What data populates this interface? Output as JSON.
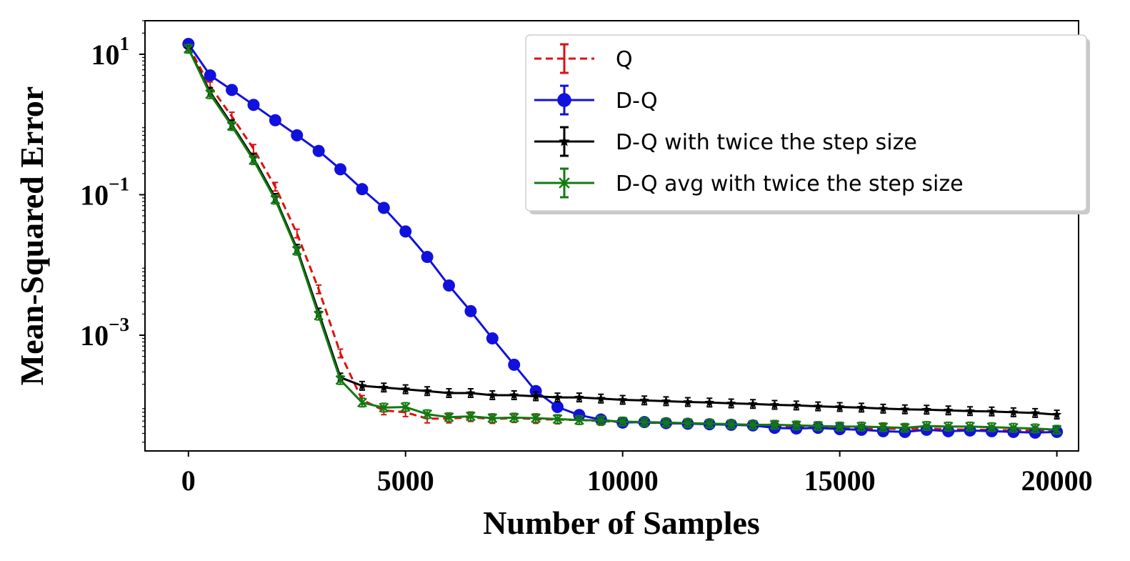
{
  "chart_data": {
    "type": "line",
    "title": "",
    "xlabel": "Number of Samples",
    "ylabel": "Mean-Squared Error",
    "yscale": "log",
    "xlim": [
      -1000,
      20500
    ],
    "ylim": [
      2.25e-05,
      30
    ],
    "xticks": [
      0,
      5000,
      10000,
      15000,
      20000
    ],
    "xtick_labels": [
      "0",
      "5000",
      "10000",
      "15000",
      "20000"
    ],
    "yticks": [
      10,
      0.1,
      0.001
    ],
    "ytick_labels": [
      {
        "base": "10",
        "exp": "1"
      },
      {
        "base": "10",
        "exp": "−1"
      },
      {
        "base": "10",
        "exp": "−3"
      }
    ],
    "grid": false,
    "legend_position": "top-right",
    "series": [
      {
        "name": "Q",
        "color": "#dd1111",
        "style": "dashed",
        "marker": "none",
        "x": [
          0,
          500,
          1000,
          1500,
          2000,
          2500,
          3000,
          3500,
          4000,
          4500,
          5000,
          5500,
          6000,
          6500,
          7000,
          7500,
          8000,
          8500,
          9000,
          9500,
          10000,
          10500,
          11000,
          11500,
          12000,
          12500,
          13000,
          13500,
          14000,
          14500,
          15000,
          15500,
          16000,
          16500,
          17000,
          17500,
          18000,
          18500,
          19000,
          19500,
          20000
        ],
        "y": [
          13,
          3.5,
          1.3,
          0.45,
          0.13,
          0.028,
          0.0045,
          0.00055,
          0.00012,
          8.5e-05,
          8e-05,
          6.5e-05,
          6.5e-05,
          6.8e-05,
          6.4e-05,
          6.6e-05,
          6.4e-05,
          6.3e-05,
          6.2e-05,
          6e-05,
          5.8e-05,
          5.7e-05,
          5.6e-05,
          5.5e-05,
          5.5e-05,
          5.3e-05,
          5.2e-05,
          5.1e-05,
          5e-05,
          4.9e-05,
          4.8e-05,
          4.7e-05,
          4.7e-05,
          4.6e-05,
          4.7e-05,
          4.6e-05,
          4.5e-05,
          4.5e-05,
          4.4e-05,
          4.4e-05,
          4.3e-05
        ]
      },
      {
        "name": "D-Q",
        "color": "#1111dd",
        "style": "solid",
        "marker": "circle",
        "x": [
          0,
          500,
          1000,
          1500,
          2000,
          2500,
          3000,
          3500,
          4000,
          4500,
          5000,
          5500,
          6000,
          6500,
          7000,
          7500,
          8000,
          8500,
          9000,
          9500,
          10000,
          10500,
          11000,
          11500,
          12000,
          12500,
          13000,
          13500,
          14000,
          14500,
          15000,
          15500,
          16000,
          16500,
          17000,
          17500,
          18000,
          18500,
          19000,
          19500,
          20000
        ],
        "y": [
          14,
          5,
          3.1,
          1.9,
          1.15,
          0.7,
          0.42,
          0.23,
          0.12,
          0.065,
          0.03,
          0.013,
          0.0051,
          0.0022,
          0.0009,
          0.00038,
          0.00016,
          9.5e-05,
          7.3e-05,
          6.3e-05,
          5.7e-05,
          5.8e-05,
          5.6e-05,
          5.5e-05,
          5.4e-05,
          5.3e-05,
          5.2e-05,
          4.8e-05,
          4.7e-05,
          4.8e-05,
          4.6e-05,
          4.5e-05,
          4.3e-05,
          4.2e-05,
          4.5e-05,
          4.3e-05,
          4.4e-05,
          4.3e-05,
          4.2e-05,
          4.1e-05,
          4.2e-05
        ]
      },
      {
        "name": "D-Q with twice the step size",
        "color": "#000000",
        "style": "solid",
        "marker": "star",
        "x": [
          0,
          500,
          1000,
          1500,
          2000,
          2500,
          3000,
          3500,
          4000,
          4500,
          5000,
          5500,
          6000,
          6500,
          7000,
          7500,
          8000,
          8500,
          9000,
          9500,
          10000,
          10500,
          11000,
          11500,
          12000,
          12500,
          13000,
          13500,
          14000,
          14500,
          15000,
          15500,
          16000,
          16500,
          17000,
          17500,
          18000,
          18500,
          19000,
          19500,
          20000
        ],
        "y": [
          12,
          2.9,
          1.0,
          0.33,
          0.09,
          0.017,
          0.0021,
          0.00025,
          0.00019,
          0.00018,
          0.00017,
          0.00016,
          0.00015,
          0.00015,
          0.00014,
          0.00014,
          0.000135,
          0.00013,
          0.00013,
          0.000125,
          0.00012,
          0.000118,
          0.000115,
          0.000112,
          0.00011,
          0.000107,
          0.000105,
          0.000102,
          0.0001,
          9.7e-05,
          9.5e-05,
          9.3e-05,
          9e-05,
          8.8e-05,
          8.7e-05,
          8.5e-05,
          8.3e-05,
          8.2e-05,
          8e-05,
          7.8e-05,
          7.4e-05
        ]
      },
      {
        "name": "D-Q avg with twice the step size",
        "color": "#127a12",
        "style": "solid",
        "marker": "x",
        "x": [
          0,
          500,
          1000,
          1500,
          2000,
          2500,
          3000,
          3500,
          4000,
          4500,
          5000,
          5500,
          6000,
          6500,
          7000,
          7500,
          8000,
          8500,
          9000,
          9500,
          10000,
          10500,
          11000,
          11500,
          12000,
          12500,
          13000,
          13500,
          14000,
          14500,
          15000,
          15500,
          16000,
          16500,
          17000,
          17500,
          18000,
          18500,
          19000,
          19500,
          20000
        ],
        "y": [
          12,
          2.7,
          0.95,
          0.31,
          0.085,
          0.016,
          0.0019,
          0.00023,
          0.00011,
          9.3e-05,
          9.5e-05,
          7.5e-05,
          6.8e-05,
          7e-05,
          6.6e-05,
          6.7e-05,
          6.6e-05,
          6.4e-05,
          6.2e-05,
          6.1e-05,
          5.9e-05,
          5.8e-05,
          5.7e-05,
          5.6e-05,
          5.5e-05,
          5.4e-05,
          5.3e-05,
          5.3e-05,
          5.2e-05,
          5.1e-05,
          5e-05,
          5e-05,
          4.9e-05,
          4.8e-05,
          5.1e-05,
          5e-05,
          5e-05,
          4.9e-05,
          4.8e-05,
          4.7e-05,
          4.5e-05
        ]
      }
    ]
  }
}
